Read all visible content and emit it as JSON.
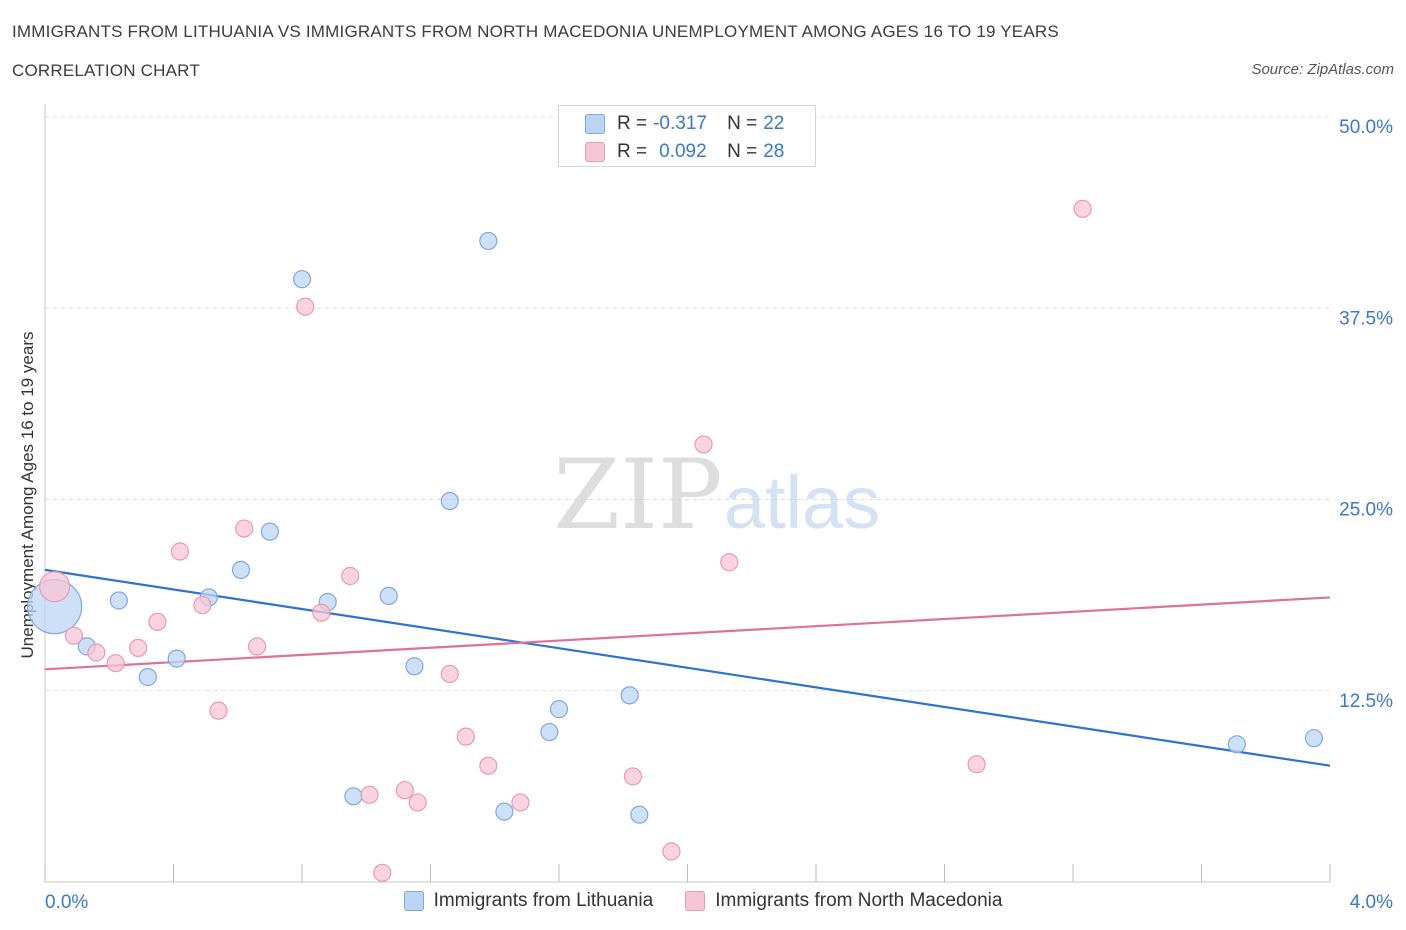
{
  "title": "IMMIGRANTS FROM LITHUANIA VS IMMIGRANTS FROM NORTH MACEDONIA UNEMPLOYMENT AMONG AGES 16 TO 19 YEARS",
  "subtitle": "CORRELATION CHART",
  "source": "Source: ZipAtlas.com",
  "watermark": {
    "zip": "ZIP",
    "atlas": "atlas"
  },
  "legend": {
    "r_label": "R =",
    "n_label": "N =",
    "rows": [
      {
        "r": "-0.317",
        "n": "22"
      },
      {
        "r": "0.092",
        "n": "28"
      }
    ]
  },
  "colors": {
    "blue_fill": "#bdd5f5",
    "blue_stroke": "#7ea8e0",
    "blue_line": "#2f72d0",
    "pink_fill": "#f7c6d6",
    "pink_stroke": "#e89ab4",
    "pink_line": "#e0709a",
    "tick_label": "#3a78c9"
  },
  "chart_data": {
    "type": "scatter",
    "xlabel": "",
    "ylabel": "Unemployment Among Ages 16 to 19 years",
    "xlim": [
      0,
      4
    ],
    "ylim": [
      0,
      50
    ],
    "x_tick_labels": [
      "0.0%",
      "4.0%"
    ],
    "y_ticks": [
      12.5,
      25,
      37.5,
      50
    ],
    "y_tick_labels": [
      "12.5%",
      "25.0%",
      "37.5%",
      "50.0%"
    ],
    "grid": "horizontal dashed",
    "series": [
      {
        "name": "Immigrants from Lithuania",
        "r": -0.317,
        "n": 22,
        "trend": [
          [
            0,
            20.4
          ],
          [
            4,
            7.6
          ]
        ],
        "points": [
          {
            "x": 0.03,
            "y": 18.0,
            "size": "large"
          },
          {
            "x": 0.13,
            "y": 15.4
          },
          {
            "x": 0.23,
            "y": 18.4
          },
          {
            "x": 0.32,
            "y": 13.4
          },
          {
            "x": 0.41,
            "y": 14.6
          },
          {
            "x": 0.51,
            "y": 18.6
          },
          {
            "x": 0.61,
            "y": 20.4
          },
          {
            "x": 0.7,
            "y": 22.9
          },
          {
            "x": 0.8,
            "y": 39.4
          },
          {
            "x": 0.88,
            "y": 18.3
          },
          {
            "x": 0.96,
            "y": 5.6
          },
          {
            "x": 1.07,
            "y": 18.7
          },
          {
            "x": 1.15,
            "y": 14.1
          },
          {
            "x": 1.26,
            "y": 24.9
          },
          {
            "x": 1.38,
            "y": 41.9
          },
          {
            "x": 1.43,
            "y": 4.6
          },
          {
            "x": 1.57,
            "y": 9.8
          },
          {
            "x": 1.6,
            "y": 11.3
          },
          {
            "x": 1.82,
            "y": 12.2
          },
          {
            "x": 1.85,
            "y": 4.4
          },
          {
            "x": 3.71,
            "y": 9.0
          },
          {
            "x": 3.95,
            "y": 9.4
          }
        ]
      },
      {
        "name": "Immigrants from North Macedonia",
        "r": 0.092,
        "n": 28,
        "trend": [
          [
            0,
            13.9
          ],
          [
            4,
            18.6
          ]
        ],
        "points": [
          {
            "x": 0.03,
            "y": 19.3,
            "size": "medium"
          },
          {
            "x": 0.09,
            "y": 16.1
          },
          {
            "x": 0.16,
            "y": 15.0
          },
          {
            "x": 0.22,
            "y": 14.3
          },
          {
            "x": 0.29,
            "y": 15.3
          },
          {
            "x": 0.35,
            "y": 17.0
          },
          {
            "x": 0.42,
            "y": 21.6
          },
          {
            "x": 0.49,
            "y": 18.1
          },
          {
            "x": 0.54,
            "y": 11.2
          },
          {
            "x": 0.62,
            "y": 23.1
          },
          {
            "x": 0.66,
            "y": 15.4
          },
          {
            "x": 0.81,
            "y": 37.6
          },
          {
            "x": 0.86,
            "y": 17.6
          },
          {
            "x": 0.95,
            "y": 20.0
          },
          {
            "x": 1.01,
            "y": 5.7
          },
          {
            "x": 1.05,
            "y": 0.6
          },
          {
            "x": 1.12,
            "y": 6.0
          },
          {
            "x": 1.16,
            "y": 5.2
          },
          {
            "x": 1.26,
            "y": 13.6
          },
          {
            "x": 1.31,
            "y": 9.5
          },
          {
            "x": 1.38,
            "y": 7.6
          },
          {
            "x": 1.48,
            "y": 5.2
          },
          {
            "x": 1.83,
            "y": 6.9
          },
          {
            "x": 1.95,
            "y": 2.0
          },
          {
            "x": 2.05,
            "y": 28.6
          },
          {
            "x": 2.13,
            "y": 20.9
          },
          {
            "x": 2.9,
            "y": 7.7
          },
          {
            "x": 3.23,
            "y": 44.0
          }
        ]
      }
    ]
  }
}
